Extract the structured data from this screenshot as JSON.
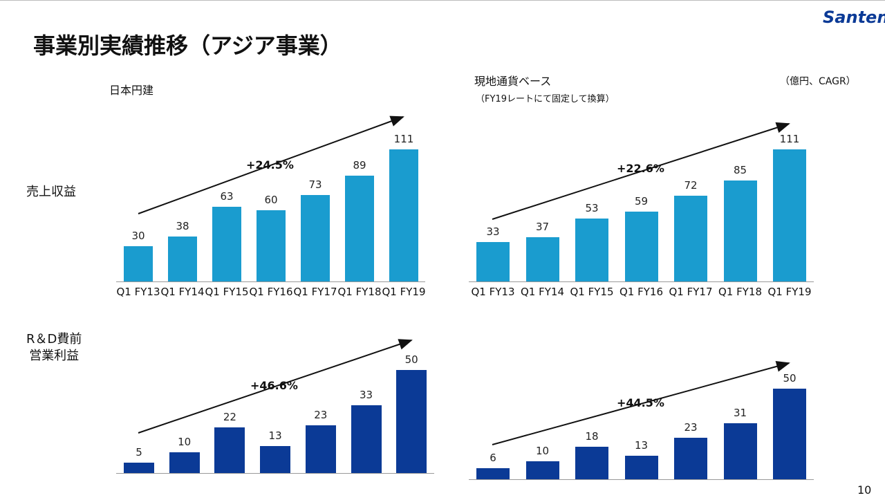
{
  "slide": {
    "title": "事業別実績推移（アジア事業）",
    "left_header": "日本円建",
    "right_header": "現地通貨ベース",
    "right_subheader": "（FY19レートにて固定して換算）",
    "unit_note": "（億円、CAGR）",
    "row_labels": [
      "売上収益",
      "R＆D費前\n営業利益"
    ],
    "logo": "Santen",
    "page_number": "10"
  },
  "chart_data": [
    {
      "type": "bar",
      "categories": [
        "Q1\nFY13",
        "Q1\nFY14",
        "Q1\nFY15",
        "Q1\nFY16",
        "Q1\nFY17",
        "Q1\nFY18",
        "Q1\nFY19"
      ],
      "values": [
        30,
        38,
        63,
        60,
        73,
        89,
        111
      ],
      "color": "#1a9ccf",
      "ylim": [
        0,
        120
      ],
      "annotation": "+24.5%"
    },
    {
      "type": "bar",
      "categories": [
        "Q1\nFY13",
        "Q1\nFY14",
        "Q1\nFY15",
        "Q1\nFY16",
        "Q1\nFY17",
        "Q1\nFY18",
        "Q1\nFY19"
      ],
      "values": [
        33,
        37,
        53,
        59,
        72,
        85,
        111
      ],
      "color": "#1a9ccf",
      "ylim": [
        0,
        120
      ],
      "annotation": "+22.6%"
    },
    {
      "type": "bar",
      "values": [
        5,
        10,
        22,
        13,
        23,
        33,
        50
      ],
      "color": "#0b3a96",
      "ylim": [
        0,
        60
      ],
      "annotation": "+46.6%"
    },
    {
      "type": "bar",
      "values": [
        6,
        10,
        18,
        13,
        23,
        31,
        50
      ],
      "color": "#0b3a96",
      "ylim": [
        0,
        60
      ],
      "annotation": "+44.5%"
    }
  ]
}
